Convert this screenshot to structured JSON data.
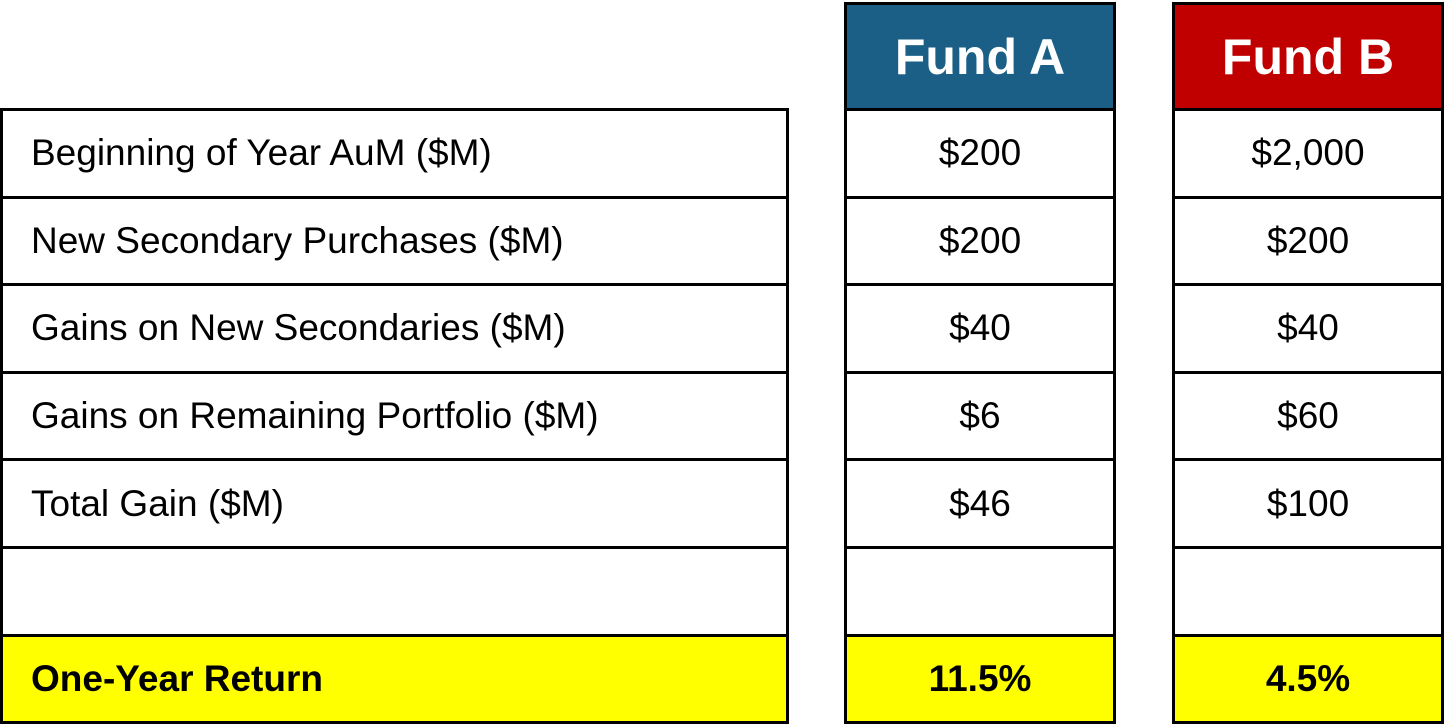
{
  "table": {
    "columns": [
      "Fund A",
      "Fund B"
    ],
    "rows": [
      {
        "label": "Beginning of Year AuM ($M)",
        "cells": [
          "$200",
          "$2,000"
        ]
      },
      {
        "label": "New Secondary Purchases ($M)",
        "cells": [
          "$200",
          "$200"
        ]
      },
      {
        "label": "Gains on New Secondaries ($M)",
        "cells": [
          "$40",
          "$40"
        ]
      },
      {
        "label": "Gains on Remaining Portfolio ($M)",
        "cells": [
          "$6",
          "$60"
        ]
      },
      {
        "label": "Total Gain ($M)",
        "cells": [
          "$46",
          "$100"
        ]
      }
    ],
    "summary": {
      "label": "One-Year Return",
      "cells": [
        "11.5%",
        "4.5%"
      ]
    }
  }
}
